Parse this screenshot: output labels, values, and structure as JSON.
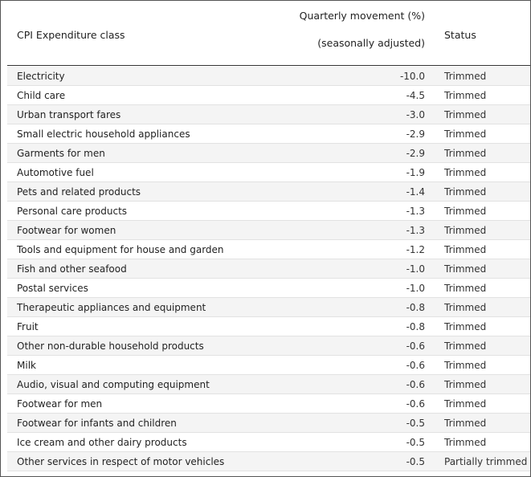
{
  "table": {
    "header": [
      "CPI Expenditure class",
      "Quarterly movement (%)",
      "(seasonally adjusted)",
      "Status"
    ],
    "rows": [
      [
        "Electricity",
        "-10.0",
        "Trimmed"
      ],
      [
        "Child care",
        "-4.5",
        "Trimmed"
      ],
      [
        "Urban transport fares",
        "-3.0",
        "Trimmed"
      ],
      [
        "Small electric household appliances",
        "-2.9",
        "Trimmed"
      ],
      [
        "Garments for men",
        "-2.9",
        "Trimmed"
      ],
      [
        "Automotive fuel",
        "-1.9",
        "Trimmed"
      ],
      [
        "Pets and related products",
        "-1.4",
        "Trimmed"
      ],
      [
        "Personal care products",
        "-1.3",
        "Trimmed"
      ],
      [
        "Footwear for women",
        "-1.3",
        "Trimmed"
      ],
      [
        "Tools and equipment for house and garden",
        "-1.2",
        "Trimmed"
      ],
      [
        "Fish and other seafood",
        "-1.0",
        "Trimmed"
      ],
      [
        "Postal services",
        "-1.0",
        "Trimmed"
      ],
      [
        "Therapeutic appliances and equipment",
        "-0.8",
        "Trimmed"
      ],
      [
        "Fruit",
        "-0.8",
        "Trimmed"
      ],
      [
        "Other non-durable household products",
        "-0.6",
        "Trimmed"
      ],
      [
        "Milk",
        "-0.6",
        "Trimmed"
      ],
      [
        "Audio, visual and computing equipment",
        "-0.6",
        "Trimmed"
      ],
      [
        "Footwear for men",
        "-0.6",
        "Trimmed"
      ],
      [
        "Footwear for infants and children",
        "-0.5",
        "Trimmed"
      ],
      [
        "Ice cream and other dairy products",
        "-0.5",
        "Trimmed"
      ],
      [
        "Other services in respect of motor vehicles",
        "-0.5",
        "Partially trimmed"
      ]
    ]
  }
}
